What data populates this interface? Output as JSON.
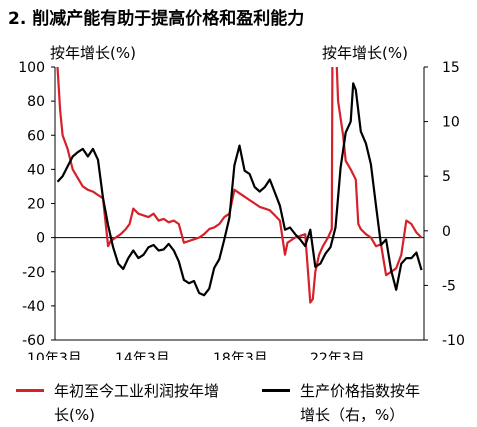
{
  "title": "2. 削减产能有助于提高价格和盈利能力",
  "chart_data": {
    "type": "line",
    "x_ticks": [
      "10年3月",
      "14年3月",
      "18年3月",
      "22年3月"
    ],
    "left_axis": {
      "label": "按年增长(%)",
      "range": [
        -60,
        100
      ],
      "ticks": [
        "100",
        "80",
        "60",
        "40",
        "20",
        "0",
        "-20",
        "-40",
        "-60"
      ]
    },
    "right_axis": {
      "label": "按年增长(%)",
      "range": [
        -10,
        15
      ],
      "ticks": [
        "15",
        "10",
        "5",
        "0",
        "-5",
        "-10"
      ]
    },
    "x_range": [
      2010.0,
      2024.6
    ],
    "series": [
      {
        "name": "年初至今工业利润按年增长(%)",
        "axis": "left",
        "color": "#d6202a",
        "x": [
          2010.1,
          2010.2,
          2010.3,
          2010.5,
          2010.7,
          2010.9,
          2011.1,
          2011.3,
          2011.5,
          2011.7,
          2011.9,
          2012.1,
          2012.2,
          2012.4,
          2012.6,
          2012.8,
          2012.95,
          2013.1,
          2013.3,
          2013.5,
          2013.7,
          2013.9,
          2014.1,
          2014.3,
          2014.5,
          2014.7,
          2014.9,
          2015.1,
          2015.3,
          2015.5,
          2015.7,
          2015.9,
          2016.1,
          2016.3,
          2016.5,
          2016.7,
          2016.9,
          2017.1,
          2017.3,
          2017.5,
          2017.7,
          2017.9,
          2018.1,
          2018.3,
          2018.5,
          2018.7,
          2018.9,
          2019.1,
          2019.2,
          2019.3,
          2019.5,
          2019.7,
          2019.9,
          2020.1,
          2020.2,
          2020.3,
          2020.45,
          2020.6,
          2020.8,
          2020.95,
          2021.0,
          2021.1,
          2021.2,
          2021.4,
          2021.5,
          2021.7,
          2021.9,
          2022.0,
          2022.1,
          2022.3,
          2022.5,
          2022.7,
          2022.9,
          2023.1,
          2023.3,
          2023.5,
          2023.7,
          2023.9,
          2024.1,
          2024.3,
          2024.5
        ],
        "values": [
          100,
          75,
          60,
          52,
          40,
          35,
          30,
          28,
          27,
          25,
          23,
          -5,
          -2,
          0,
          2,
          5,
          8,
          17,
          14,
          13,
          12,
          14,
          10,
          11,
          9,
          10,
          8,
          -3,
          -2,
          -1,
          0,
          2,
          5,
          6,
          8,
          12,
          14,
          28,
          26,
          24,
          22,
          20,
          18,
          17,
          16,
          13,
          10,
          -10,
          -3,
          -2,
          0,
          1,
          2,
          -38,
          -36,
          -20,
          -10,
          -5,
          0,
          5,
          200,
          120,
          80,
          60,
          45,
          40,
          34,
          8,
          5,
          2,
          0,
          -5,
          -4,
          -22,
          -20,
          -18,
          -10,
          10,
          8,
          3,
          0
        ]
      },
      {
        "name": "生产价格指数按年增长（右，%）",
        "axis": "right",
        "color": "#000000",
        "x": [
          2010.1,
          2010.3,
          2010.5,
          2010.7,
          2010.9,
          2011.1,
          2011.3,
          2011.5,
          2011.7,
          2011.9,
          2012.1,
          2012.3,
          2012.5,
          2012.7,
          2012.9,
          2013.1,
          2013.3,
          2013.5,
          2013.7,
          2013.9,
          2014.1,
          2014.3,
          2014.5,
          2014.7,
          2014.9,
          2015.1,
          2015.3,
          2015.5,
          2015.7,
          2015.9,
          2016.1,
          2016.3,
          2016.5,
          2016.7,
          2016.9,
          2017.1,
          2017.3,
          2017.5,
          2017.7,
          2017.9,
          2018.1,
          2018.3,
          2018.5,
          2018.7,
          2018.9,
          2019.1,
          2019.3,
          2019.5,
          2019.7,
          2019.9,
          2020.1,
          2020.3,
          2020.5,
          2020.7,
          2020.9,
          2021.1,
          2021.3,
          2021.5,
          2021.7,
          2021.8,
          2021.9,
          2022.1,
          2022.3,
          2022.5,
          2022.7,
          2022.9,
          2023.1,
          2023.3,
          2023.5,
          2023.7,
          2023.9,
          2024.1,
          2024.3,
          2024.5
        ],
        "values": [
          4.5,
          5.0,
          5.9,
          6.8,
          7.2,
          7.5,
          6.8,
          7.5,
          6.5,
          3.0,
          0.5,
          -1.5,
          -3.0,
          -3.5,
          -2.5,
          -1.8,
          -2.5,
          -2.2,
          -1.5,
          -1.3,
          -1.8,
          -1.7,
          -1.2,
          -1.8,
          -2.8,
          -4.5,
          -4.8,
          -4.6,
          -5.7,
          -5.9,
          -5.3,
          -3.4,
          -2.6,
          -0.8,
          1.2,
          6.0,
          7.8,
          5.5,
          5.2,
          4.0,
          3.6,
          4.0,
          4.7,
          3.5,
          2.3,
          0.1,
          0.3,
          -0.3,
          -0.8,
          -1.4,
          0.1,
          -3.3,
          -3.0,
          -2.1,
          -1.5,
          0.3,
          5.8,
          9.0,
          10.0,
          13.5,
          12.9,
          9.1,
          8.0,
          6.1,
          2.3,
          -1.3,
          -0.8,
          -3.6,
          -5.4,
          -3.0,
          -2.5,
          -2.5,
          -2.0,
          -3.6
        ]
      }
    ]
  },
  "legend": [
    {
      "line1": "年初至今工业利润按年增",
      "line2": "长(%)",
      "color": "#d6202a"
    },
    {
      "line1": "生产价格指数按年",
      "line2": "增长（右，%）",
      "color": "#000000"
    }
  ]
}
